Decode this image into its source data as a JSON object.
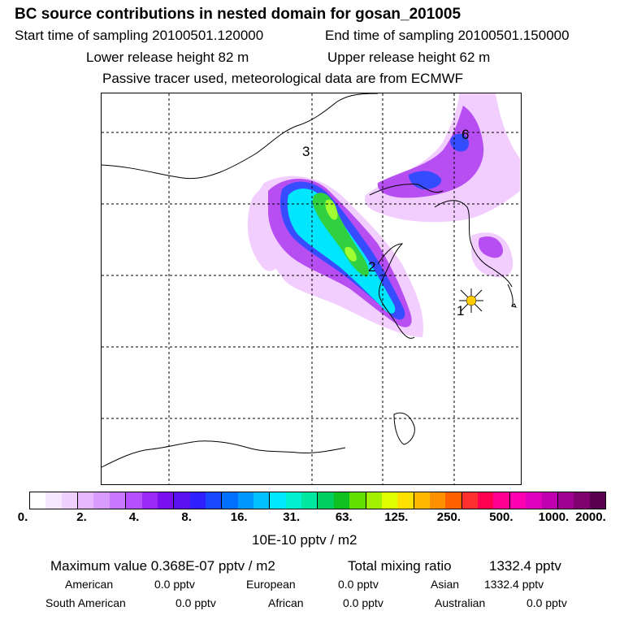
{
  "title": "BC  source contributions in nested domain for gosan_201005",
  "start_time": "Start time of sampling 20100501.120000",
  "end_time": "End time of sampling 20100501.150000",
  "lower_height": "Lower release height   82 m",
  "upper_height": "Upper release height   62 m",
  "tracer_note": "Passive tracer used, meteorological data are from ECMWF",
  "map": {
    "labels": [
      "1",
      "2",
      "3",
      "6"
    ],
    "colors": {
      "low": "#f0c8ff",
      "mid": "#b040f0",
      "blue": "#3050ff",
      "cyan": "#00e8ff",
      "green": "#40d040",
      "lime": "#90ff30",
      "station": "#ffcc00"
    }
  },
  "colorbar": {
    "colors": [
      "#ffffff",
      "#f7e8ff",
      "#efd0ff",
      "#e6b8ff",
      "#d89cff",
      "#c878ff",
      "#b550ff",
      "#9c28f8",
      "#7a10f0",
      "#5a10f0",
      "#3020ff",
      "#1848ff",
      "#0070ff",
      "#0098ff",
      "#00c0ff",
      "#00e8ff",
      "#00f0d0",
      "#00e8a0",
      "#00d060",
      "#10c020",
      "#60e000",
      "#a0f000",
      "#e0ff00",
      "#ffe000",
      "#ffb800",
      "#ff9000",
      "#ff6000",
      "#ff3030",
      "#ff0050",
      "#ff0090",
      "#ff00b0",
      "#e000c0",
      "#c000b0",
      "#a00090",
      "#800070",
      "#5a0050"
    ],
    "ticks": [
      "0.",
      "2.",
      "4.",
      "8.",
      "16.",
      "31.",
      "63.",
      "125.",
      "250.",
      "500.",
      "1000.",
      "2000."
    ],
    "units": "10E-10 pptv / m2"
  },
  "summary": {
    "max_label": "Maximum value  0.368E-07 pptv / m2",
    "total_label": "Total mixing ratio",
    "total_value": "1332.4 pptv",
    "rows": [
      [
        {
          "label": "American",
          "value": "0.0 pptv"
        },
        {
          "label": "European",
          "value": "0.0 pptv"
        },
        {
          "label": "Asian",
          "value": "1332.4 pptv"
        }
      ],
      [
        {
          "label": "South American",
          "value": "0.0 pptv"
        },
        {
          "label": "African",
          "value": "0.0 pptv"
        },
        {
          "label": "Australian",
          "value": "0.0 pptv"
        }
      ]
    ]
  }
}
